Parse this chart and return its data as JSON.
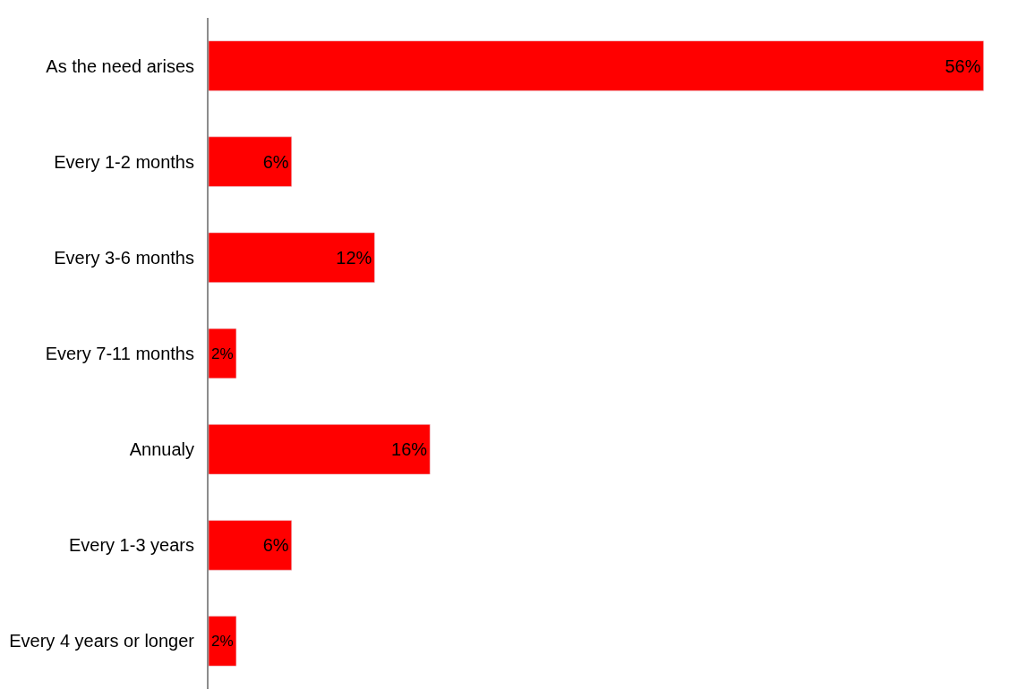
{
  "chart_data": {
    "type": "bar",
    "orientation": "horizontal",
    "categories": [
      "As the need arises",
      "Every 1-2 months",
      "Every 3-6 months",
      "Every 7-11 months",
      "Annualy",
      "Every 1-3 years",
      "Every 4 years or longer"
    ],
    "values": [
      56,
      6,
      12,
      2,
      16,
      6,
      2
    ],
    "value_labels": [
      "56%",
      "6%",
      "12%",
      "2%",
      "16%",
      "6%",
      "2%"
    ],
    "color": "#ff0000",
    "tick_labels": "y"
  }
}
